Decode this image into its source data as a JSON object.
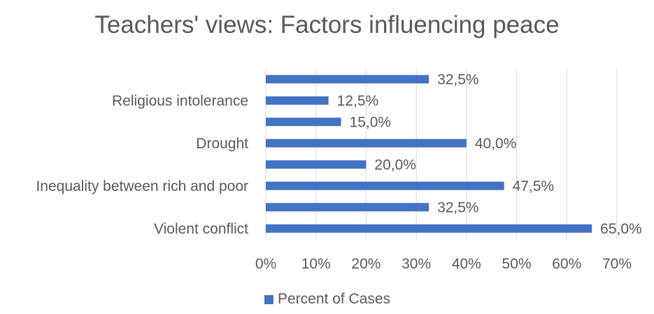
{
  "chart_data": {
    "type": "bar",
    "orientation": "horizontal",
    "title": "Teachers' views: Factors influencing peace",
    "xlabel": "",
    "ylabel": "",
    "xlim": [
      0,
      70
    ],
    "x_ticks": [
      0,
      10,
      20,
      30,
      40,
      50,
      60,
      70
    ],
    "x_tick_labels": [
      "0%",
      "10%",
      "20%",
      "30%",
      "40%",
      "50%",
      "60%",
      "70%"
    ],
    "categories": [
      "Violent conflict",
      "",
      "Inequality between rich and poor",
      "",
      "Drought",
      "",
      "Religious intolerance",
      ""
    ],
    "series": [
      {
        "name": "Percent of Cases",
        "color": "#4472C4",
        "values": [
          65.0,
          32.5,
          47.5,
          20.0,
          40.0,
          15.0,
          12.5,
          32.5
        ],
        "data_labels": [
          "65,0%",
          "32,5%",
          "47,5%",
          "20,0%",
          "40,0%",
          "15,0%",
          "12,5%",
          "32,5%"
        ]
      }
    ],
    "grid": true,
    "legend_position": "bottom"
  }
}
